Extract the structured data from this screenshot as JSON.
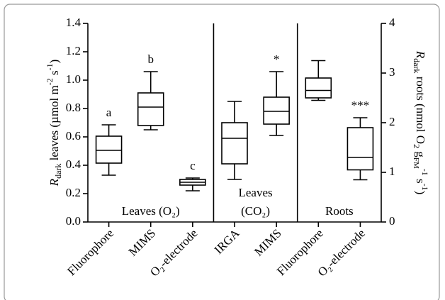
{
  "chart_data": {
    "type": "box",
    "y_label": [
      "R",
      "dark",
      " leaves (µmol m",
      "-2",
      " s",
      "-1",
      ")"
    ],
    "y2_label": [
      "R",
      "dark",
      " roots (nmol O",
      "2",
      " g",
      "FM",
      "-1",
      " s",
      "-1",
      ")"
    ],
    "ylim": [
      0,
      1.4
    ],
    "yticks": [
      {
        "value": 0,
        "label": "0.0"
      },
      0.2,
      0.4,
      0.6,
      0.8,
      {
        "value": 1,
        "label": "1.0"
      },
      1.2,
      1.4
    ],
    "y2lim": [
      0,
      4
    ],
    "y2ticks": [
      0,
      1,
      2,
      3,
      4
    ],
    "panels": [
      {
        "label": [
          "Leaves (O₂)"
        ],
        "boxes": [
          {
            "category": "Fluorophore",
            "whisker_low": 0.33,
            "q1": 0.415,
            "median": 0.505,
            "q3": 0.605,
            "whisker_high": 0.685,
            "sig_label": "a",
            "fill": "white"
          },
          {
            "category": "MIMS",
            "whisker_low": 0.65,
            "q1": 0.68,
            "median": 0.81,
            "q3": 0.91,
            "whisker_high": 1.06,
            "sig_label": "b",
            "fill": "white"
          },
          {
            "category": "O₂-electrode",
            "whisker_low": 0.22,
            "q1": 0.26,
            "median": 0.28,
            "q3": 0.3,
            "whisker_high": 0.31,
            "sig_label": "c",
            "fill": "white"
          }
        ]
      },
      {
        "label": [
          "Leaves",
          "(CO₂)"
        ],
        "boxes": [
          {
            "category": "IRGA",
            "whisker_low": 0.3,
            "q1": 0.41,
            "median": 0.59,
            "q3": 0.7,
            "whisker_high": 0.85,
            "fill": "dots"
          },
          {
            "category": "MIMS",
            "whisker_low": 0.61,
            "q1": 0.69,
            "median": 0.78,
            "q3": 0.88,
            "whisker_high": 1.06,
            "sig_label": "*",
            "fill": "dots"
          }
        ]
      },
      {
        "label": [
          "Roots"
        ],
        "boxes": [
          {
            "category": "Fluorophore",
            "whisker_low": 2.45,
            "q1": 2.5,
            "median": 2.65,
            "q3": 2.9,
            "whisker_high": 3.25,
            "fill": "white",
            "axis": "y2"
          },
          {
            "category": "O₂-electrode",
            "whisker_low": 0.85,
            "q1": 1.05,
            "median": 1.3,
            "q3": 1.9,
            "whisker_high": 2.1,
            "sig_label": "***",
            "fill": "white",
            "axis": "y2"
          }
        ]
      }
    ]
  }
}
